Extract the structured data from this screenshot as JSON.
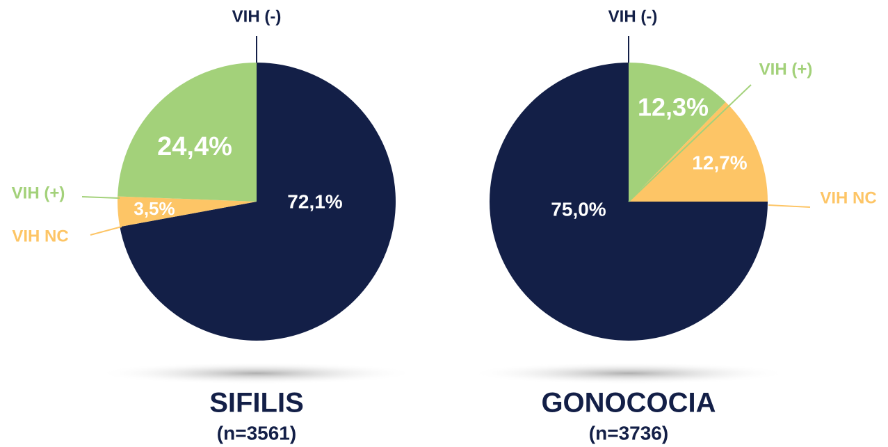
{
  "chart_data": [
    {
      "type": "pie",
      "title": "SIFILIS",
      "subtitle": "(n=3561)",
      "categories": [
        "VIH (-)",
        "VIH NC",
        "VIH (+)"
      ],
      "values": [
        72.1,
        3.5,
        24.4
      ],
      "value_labels": [
        "72,1%",
        "3,5%",
        "24,4%"
      ],
      "colors": [
        "#131f47",
        "#fdc566",
        "#a3d17a"
      ]
    },
    {
      "type": "pie",
      "title": "GONOCOCIA",
      "subtitle": "(n=3736)",
      "categories": [
        "VIH (+)",
        "VIH NC",
        "VIH (-)"
      ],
      "values": [
        12.3,
        12.7,
        75.0
      ],
      "value_labels": [
        "12,3%",
        "12,7%",
        "75,0%"
      ],
      "colors": [
        "#a3d17a",
        "#fdc566",
        "#131f47"
      ]
    }
  ]
}
